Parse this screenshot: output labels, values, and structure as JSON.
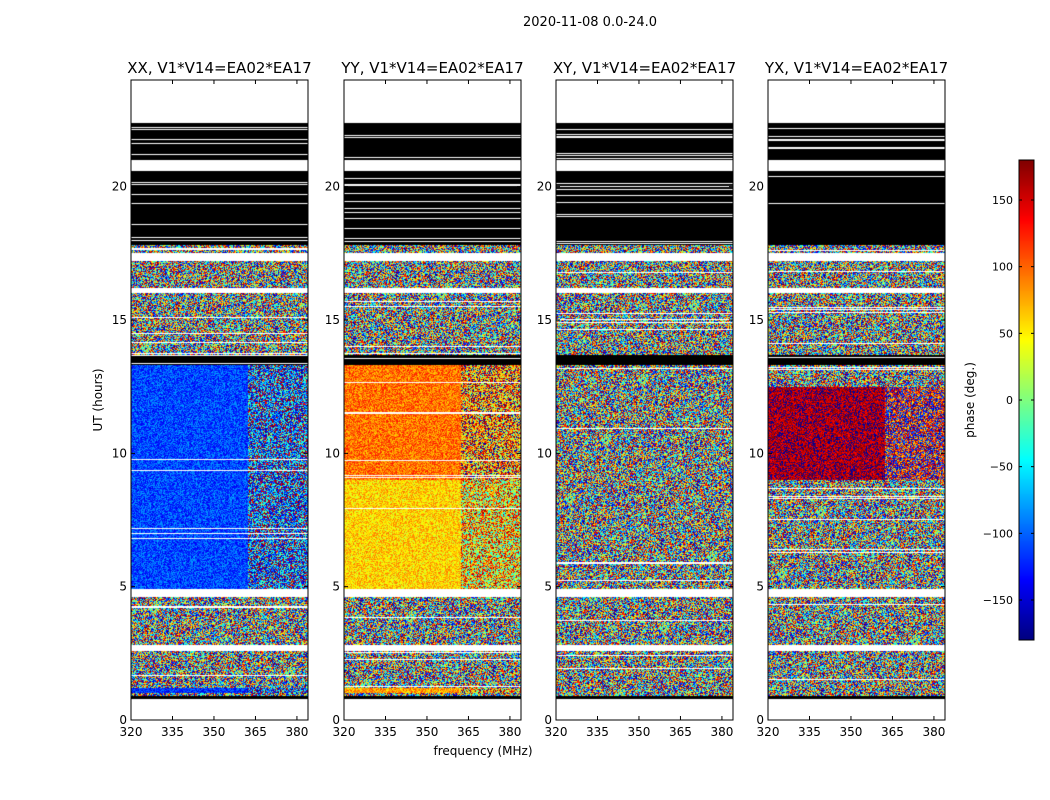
{
  "suptitle": "2020-11-08 0.0-24.0",
  "shared": {
    "xlabel": "frequency (MHz)",
    "ylabel": "UT (hours)",
    "x_ticks": [
      320,
      335,
      350,
      365,
      380
    ],
    "xlim": [
      320,
      384
    ],
    "y_ticks": [
      0,
      5,
      10,
      15,
      20
    ],
    "ylim": [
      0,
      24
    ]
  },
  "colorbar": {
    "label": "phase (deg.)",
    "ticks": [
      150,
      100,
      50,
      0,
      -50,
      -100,
      -150
    ],
    "range": [
      -180,
      180
    ],
    "colormap": "jet",
    "colors": [
      "#00007f",
      "#0000ff",
      "#007fff",
      "#00ffff",
      "#7fff7f",
      "#ffff00",
      "#ff7f00",
      "#ff0000",
      "#7f0000"
    ]
  },
  "chart_data": [
    {
      "type": "heatmap",
      "title": "XX, V1*V14=EA02*EA17",
      "mean_phase_by_time": [
        {
          "ut": [
            1.0,
            1.2
          ],
          "phase": -120
        },
        {
          "ut": [
            4.6,
            13.3
          ],
          "phase": -110
        }
      ],
      "noise": "random phase outside listed ranges"
    },
    {
      "type": "heatmap",
      "title": "YY, V1*V14=EA02*EA17",
      "mean_phase_by_time": [
        {
          "ut": [
            1.0,
            1.2
          ],
          "phase": 80
        },
        {
          "ut": [
            4.6,
            9.0
          ],
          "phase": 60
        },
        {
          "ut": [
            9.0,
            13.3
          ],
          "phase": 95
        }
      ],
      "noise": "random phase outside listed ranges"
    },
    {
      "type": "heatmap",
      "title": "XY, V1*V14=EA02*EA17",
      "mean_phase_by_time": [],
      "noise": "random phase"
    },
    {
      "type": "heatmap",
      "title": "YX, V1*V14=EA02*EA17",
      "mean_phase_by_time": [
        {
          "ut": [
            9.0,
            12.5
          ],
          "phase": 165
        }
      ],
      "noise": "random phase outside listed ranges"
    }
  ],
  "flagged_black_ut": [
    [
      17.8,
      22.4
    ],
    [
      13.3,
      13.7
    ],
    [
      0.8,
      0.9
    ]
  ],
  "blank_white_ut": [
    [
      22.4,
      24.0
    ],
    [
      20.6,
      21.0
    ],
    [
      17.2,
      17.5
    ],
    [
      16.0,
      16.2
    ],
    [
      4.6,
      4.9
    ],
    [
      2.6,
      2.8
    ],
    [
      0.0,
      0.8
    ]
  ]
}
